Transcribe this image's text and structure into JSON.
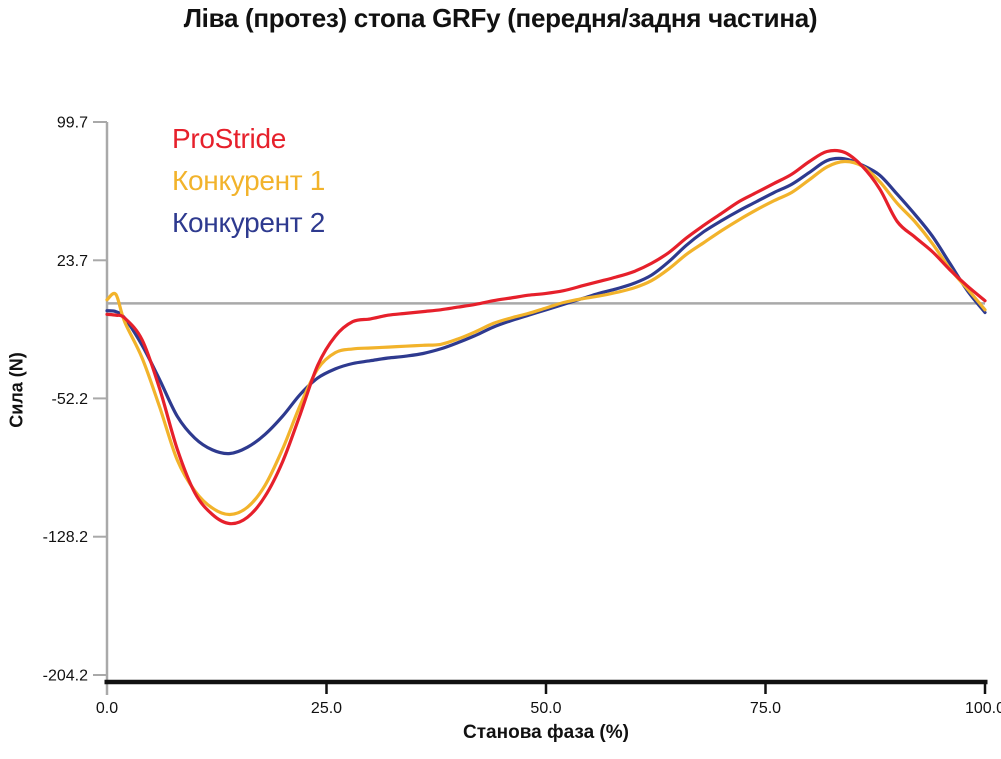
{
  "title": "Ліва (протез) стопа GRFy (передня/задня частина)",
  "legend": {
    "items": [
      {
        "label": "ProStride",
        "color": "#e6202b"
      },
      {
        "label": "Конкурент 1",
        "color": "#f2b32b"
      },
      {
        "label": "Конкурент 2",
        "color": "#2e3a8f"
      }
    ]
  },
  "colors": {
    "prostride_red": "#e6202b",
    "competitor1_yellow": "#f2b32b",
    "competitor2_blue": "#2e3a8f",
    "zero_line_gray": "#a9a9a9",
    "y_axis_gray": "#a9a9a9",
    "x_axis_black": "#111111",
    "text": "#111111"
  },
  "chart_data": {
    "type": "line",
    "title": "Ліва (протез) стопа GRFy (передня/задня частина)",
    "xlabel": "Станова фаза (%)",
    "ylabel": "Сила (N)",
    "xlim": [
      0,
      100
    ],
    "ylim": [
      -204.2,
      99.7
    ],
    "x_ticks": [
      "0.0",
      "25.0",
      "50.0",
      "75.0",
      "100.0"
    ],
    "x_tick_values": [
      0,
      25,
      50,
      75,
      100
    ],
    "y_ticks": [
      "99.7",
      "23.7",
      "-52.2",
      "-128.2",
      "-204.2"
    ],
    "y_tick_values": [
      99.7,
      23.7,
      -52.2,
      -128.2,
      -204.2
    ],
    "zero_line_value": 0,
    "grid": false,
    "legend_position": "top-left-inside",
    "x": [
      0,
      1,
      2,
      4,
      6,
      8,
      10,
      12,
      14,
      16,
      18,
      20,
      22,
      24,
      26,
      28,
      30,
      32,
      34,
      36,
      38,
      40,
      42,
      44,
      46,
      48,
      50,
      52,
      54,
      56,
      58,
      60,
      62,
      64,
      66,
      68,
      70,
      72,
      74,
      76,
      78,
      80,
      82,
      84,
      86,
      88,
      90,
      92,
      94,
      96,
      98,
      100
    ],
    "series": [
      {
        "name": "ProStride",
        "color": "#e6202b",
        "values": [
          -6,
          -6.5,
          -8,
          -20,
          -47,
          -80,
          -104,
          -116,
          -121,
          -117.5,
          -106,
          -87,
          -61,
          -34,
          -18,
          -10,
          -8.5,
          -6.5,
          -5.5,
          -4.5,
          -3.5,
          -2,
          -0.5,
          1.5,
          3,
          4.5,
          5.5,
          7,
          9.5,
          12,
          14.5,
          17.5,
          22,
          28,
          36,
          43,
          49.5,
          56,
          61,
          66,
          71,
          78,
          83.5,
          83,
          75.5,
          63,
          45,
          36.5,
          28.5,
          18.5,
          9.5,
          1.5
        ]
      },
      {
        "name": "Конкурент 1",
        "color": "#f2b32b",
        "values": [
          2,
          5,
          -10,
          -30,
          -57,
          -86,
          -103,
          -112.5,
          -116,
          -112,
          -100,
          -80,
          -56,
          -36,
          -27,
          -25,
          -24.5,
          -24,
          -23.5,
          -23,
          -22.5,
          -19.5,
          -15.5,
          -11,
          -8,
          -5.5,
          -2.5,
          0.5,
          2.5,
          4,
          6,
          8.5,
          12.5,
          19,
          27,
          33.5,
          40,
          46,
          51.5,
          56.5,
          61,
          68,
          75,
          78,
          75.5,
          67,
          55,
          45,
          33,
          19,
          8,
          -3.5
        ]
      },
      {
        "name": "Конкурент 2",
        "color": "#2e3a8f",
        "values": [
          -4,
          -4.5,
          -8,
          -23,
          -42,
          -62,
          -74,
          -80.5,
          -82.5,
          -79,
          -72,
          -62,
          -50,
          -41,
          -36,
          -33,
          -31.5,
          -30,
          -29,
          -27.5,
          -25,
          -21.5,
          -17.5,
          -13,
          -9.5,
          -6.5,
          -3.5,
          -0.5,
          2.5,
          5.5,
          8,
          11,
          15.5,
          23,
          32,
          39.5,
          45.5,
          51,
          56,
          61,
          65.5,
          72,
          78.5,
          79.5,
          76,
          70.5,
          60,
          49,
          37,
          22,
          7,
          -5
        ]
      }
    ]
  }
}
